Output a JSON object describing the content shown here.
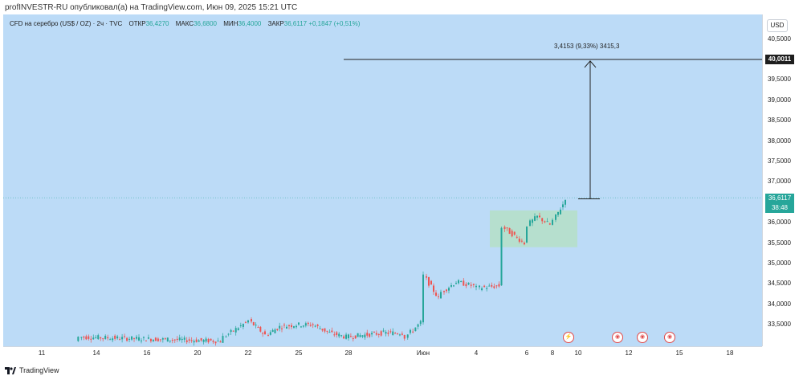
{
  "publisher_line": "profINVESTR-RU опубликовал(а) на TradingView.com, Июн 09, 2025 15:21 UTC",
  "legend": {
    "symbol": "CFD на серебро (US$ / OZ) · 2ч · TVC",
    "open_label": "ОТКР",
    "open_value": "36,4270",
    "high_label": "МАКС",
    "high_value": "36,6800",
    "low_label": "МИН",
    "low_value": "36,4000",
    "close_label": "ЗАКР",
    "close_value": "36,6117",
    "change": "+0,1847 (+0,51%)"
  },
  "currency": "USD",
  "price_tags": {
    "target": "40,0011",
    "current": "36,6117",
    "countdown": "38:48"
  },
  "measure_text": "3,4153 (9,33%) 3415,3",
  "brand": "TradingView",
  "colors": {
    "up": "#26a69a",
    "down": "#ef5350",
    "background": "#bcdbf7",
    "box": "#b5dfc7"
  },
  "chart_data": {
    "type": "candlestick",
    "y_axis_ticks": [
      "33,5000",
      "34,0000",
      "34,5000",
      "35,0000",
      "35,5000",
      "36,0000",
      "36,5000",
      "37,0000",
      "37,5000",
      "38,0000",
      "38,5000",
      "39,0000",
      "39,5000",
      "40,5000"
    ],
    "x_axis_ticks": [
      "11",
      "14",
      "16",
      "20",
      "22",
      "25",
      "28",
      "Июн",
      "4",
      "6",
      "8",
      "10",
      "12",
      "15",
      "18"
    ],
    "ylim": [
      33.0,
      40.7
    ],
    "current_price": 36.6117,
    "target_price": 40.0011,
    "measure": {
      "from": 36.5858,
      "to": 40.0011,
      "change": 3.4153,
      "percent": 9.33
    },
    "consolidation_box": {
      "from": "Jun 4",
      "to": "Jun 9",
      "low": 35.4,
      "high": 36.3
    },
    "close_path": [
      [
        "May 13",
        33.1
      ],
      [
        "May 13",
        33.2
      ],
      [
        "May 21",
        33.1
      ],
      [
        "May 21",
        33.2
      ],
      [
        "May 22",
        33.55
      ],
      [
        "May 22",
        33.6
      ],
      [
        "May 23",
        33.3
      ],
      [
        "May 23",
        33.25
      ],
      [
        "May 24",
        33.45
      ],
      [
        "May 25",
        33.5
      ],
      [
        "May 26",
        33.5
      ],
      [
        "May 27",
        33.3
      ],
      [
        "May 28",
        33.2
      ],
      [
        "May 29",
        33.25
      ],
      [
        "May 30",
        33.3
      ],
      [
        "May 31",
        33.3
      ],
      [
        "May 31",
        33.2
      ],
      [
        "Jun 1",
        33.55
      ],
      [
        "Jun 1",
        34.7
      ],
      [
        "Jun 2",
        34.15
      ],
      [
        "Jun 2",
        34.3
      ],
      [
        "Jun 3",
        34.55
      ],
      [
        "Jun 4",
        34.45
      ],
      [
        "Jun 4",
        34.4
      ],
      [
        "Jun 5",
        34.45
      ],
      [
        "Jun 5",
        35.9
      ],
      [
        "Jun 6",
        35.5
      ],
      [
        "Jun 6",
        35.95
      ],
      [
        "Jun 7",
        36.15
      ],
      [
        "Jun 8",
        35.95
      ],
      [
        "Jun 8",
        36.05
      ],
      [
        "Jun 9",
        36.45
      ],
      [
        "Jun 9",
        36.61
      ]
    ]
  }
}
